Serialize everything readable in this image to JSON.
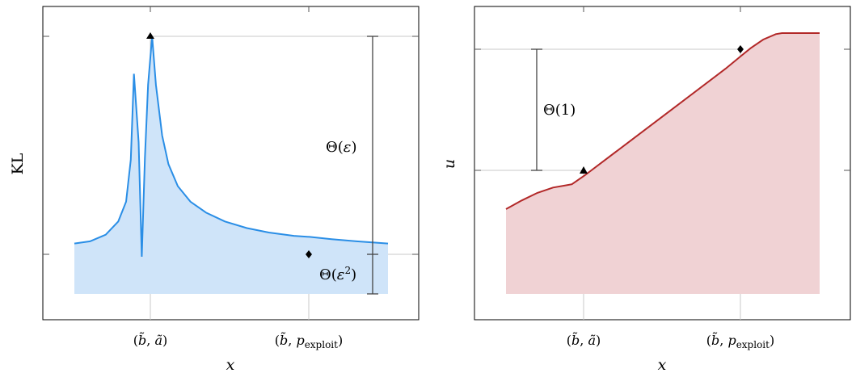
{
  "chart_data": [
    {
      "type": "area",
      "xlabel": "x",
      "ylabel": "KL",
      "xticks": [
        "(b̃, ã)",
        "(b̃, p_exploit)"
      ],
      "series": [
        {
          "color": "#2a8ee6",
          "fill": "#cfe4f9",
          "points": [
            [
              0.0,
              0.06
            ],
            [
              0.05,
              0.07
            ],
            [
              0.1,
              0.1
            ],
            [
              0.14,
              0.16
            ],
            [
              0.165,
              0.25
            ],
            [
              0.18,
              0.44
            ],
            [
              0.19,
              0.83
            ],
            [
              0.205,
              0.52
            ],
            [
              0.215,
              0.0
            ],
            [
              0.225,
              0.45
            ],
            [
              0.235,
              0.78
            ],
            [
              0.248,
              1.0
            ],
            [
              0.26,
              0.78
            ],
            [
              0.28,
              0.55
            ],
            [
              0.3,
              0.42
            ],
            [
              0.33,
              0.32
            ],
            [
              0.37,
              0.25
            ],
            [
              0.42,
              0.2
            ],
            [
              0.48,
              0.16
            ],
            [
              0.55,
              0.13
            ],
            [
              0.62,
              0.11
            ],
            [
              0.7,
              0.095
            ],
            [
              0.75,
              0.09
            ],
            [
              0.82,
              0.08
            ],
            [
              0.9,
              0.07
            ],
            [
              1.0,
              0.06
            ]
          ]
        }
      ],
      "markers": [
        {
          "shape": "triangle",
          "x": 0.248,
          "y": 1.0
        },
        {
          "shape": "diamond",
          "x": 0.75,
          "y": 0.09
        }
      ],
      "annotations": [
        {
          "text": "Θ(ε)",
          "segment": "upper"
        },
        {
          "text": "Θ(ε²)",
          "segment": "lower"
        }
      ]
    },
    {
      "type": "area",
      "xlabel": "x",
      "ylabel": "u",
      "xticks": [
        "(b̃, ã)",
        "(b̃, p_exploit)"
      ],
      "series": [
        {
          "color": "#b22828",
          "fill": "#f0d2d4",
          "points": [
            [
              0.0,
              0.0
            ],
            [
              0.05,
              0.04
            ],
            [
              0.1,
              0.075
            ],
            [
              0.15,
              0.1
            ],
            [
              0.19,
              0.11
            ],
            [
              0.21,
              0.115
            ],
            [
              0.225,
              0.13
            ],
            [
              0.25,
              0.155
            ],
            [
              0.4,
              0.32
            ],
            [
              0.55,
              0.485
            ],
            [
              0.7,
              0.65
            ],
            [
              0.75,
              0.71
            ],
            [
              0.78,
              0.745
            ],
            [
              0.82,
              0.785
            ],
            [
              0.86,
              0.81
            ],
            [
              0.88,
              0.815
            ],
            [
              0.94,
              0.815
            ],
            [
              1.0,
              0.815
            ]
          ]
        }
      ],
      "markers": [
        {
          "shape": "triangle",
          "x": 0.25,
          "y": 0.155
        },
        {
          "shape": "diamond",
          "x": 0.75,
          "y": 0.71
        }
      ],
      "annotations": [
        {
          "text": "Θ(1)",
          "segment": "left"
        }
      ]
    }
  ]
}
